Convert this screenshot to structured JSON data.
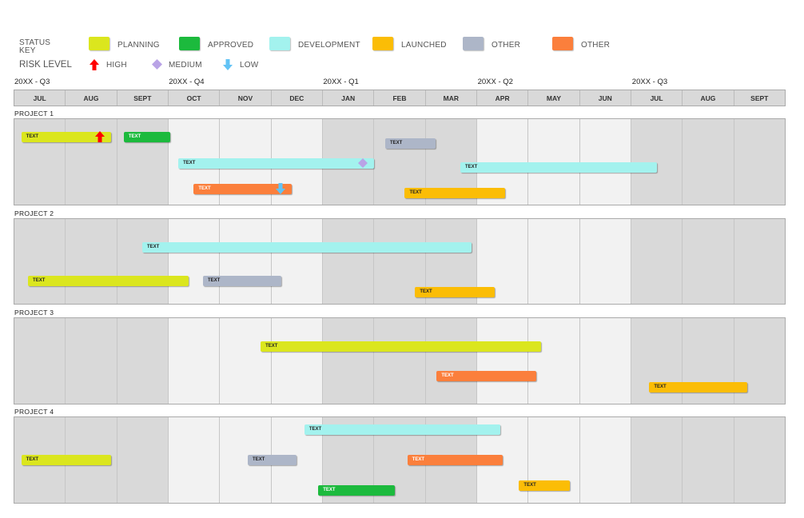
{
  "colors": {
    "planning": "#dbe61e",
    "approved": "#1cba3d",
    "development": "#a3f2ee",
    "launched": "#fbbd06",
    "other": "#adb6c8",
    "other2": "#fb7f3c",
    "high": "#ff0000",
    "medium": "#b9a3e6",
    "low": "#62c3f5",
    "shade": "#d9d9d9",
    "light": "#f2f2f2"
  },
  "legend": {
    "status_key": "STATUS KEY",
    "risk_level": "RISK LEVEL",
    "statuses": [
      {
        "label": "PLANNING",
        "color": "planning"
      },
      {
        "label": "APPROVED",
        "color": "approved"
      },
      {
        "label": "DEVELOPMENT",
        "color": "development"
      },
      {
        "label": "LAUNCHED",
        "color": "launched"
      },
      {
        "label": "OTHER",
        "color": "other"
      },
      {
        "label": "OTHER",
        "color": "other2"
      }
    ],
    "risks": [
      {
        "label": "HIGH",
        "icon": "arrow-up-icon"
      },
      {
        "label": "MEDIUM",
        "icon": "diamond-icon"
      },
      {
        "label": "LOW",
        "icon": "arrow-down-icon"
      }
    ]
  },
  "timeline": {
    "quarters": [
      "20XX - Q3",
      "20XX - Q4",
      "20XX - Q1",
      "20XX - Q2",
      "20XX - Q3"
    ],
    "months": [
      "JUL",
      "AUG",
      "SEPT",
      "OCT",
      "NOV",
      "DEC",
      "JAN",
      "FEB",
      "MAR",
      "APR",
      "MAY",
      "JUN",
      "JUL",
      "AUG",
      "SEPT"
    ],
    "month_shading": [
      "shade",
      "shade",
      "shade",
      "light",
      "light",
      "light",
      "shade",
      "shade",
      "shade",
      "light",
      "light",
      "light",
      "shade",
      "shade",
      "shade"
    ]
  },
  "projects": [
    {
      "name": "PROJECT 1",
      "bars": [
        {
          "label": "TEXT",
          "status": "planning",
          "start": 0.15,
          "end": 1.9,
          "row": 0.22,
          "risk": "high"
        },
        {
          "label": "TEXT",
          "status": "approved",
          "start": 2.14,
          "end": 3.05,
          "row": 0.22
        },
        {
          "label": "TEXT",
          "status": "development",
          "start": 3.2,
          "end": 7.0,
          "row": 0.52,
          "risk": "medium"
        },
        {
          "label": "TEXT",
          "status": "other2",
          "start": 3.5,
          "end": 5.4,
          "row": 0.82,
          "risk": "low"
        },
        {
          "label": "TEXT",
          "status": "other",
          "start": 7.22,
          "end": 8.2,
          "row": 0.29
        },
        {
          "label": "TEXT",
          "status": "development",
          "start": 8.68,
          "end": 12.5,
          "row": 0.57
        },
        {
          "label": "TEXT",
          "status": "launched",
          "start": 7.6,
          "end": 9.55,
          "row": 0.86
        }
      ]
    },
    {
      "name": "PROJECT 2",
      "bars": [
        {
          "label": "TEXT",
          "status": "development",
          "start": 2.5,
          "end": 8.9,
          "row": 0.34
        },
        {
          "label": "TEXT",
          "status": "planning",
          "start": 0.28,
          "end": 3.4,
          "row": 0.73
        },
        {
          "label": "TEXT",
          "status": "other",
          "start": 3.68,
          "end": 5.2,
          "row": 0.73
        },
        {
          "label": "TEXT",
          "status": "launched",
          "start": 7.8,
          "end": 9.35,
          "row": 0.86
        }
      ]
    },
    {
      "name": "PROJECT 3",
      "bars": [
        {
          "label": "TEXT",
          "status": "planning",
          "start": 4.8,
          "end": 10.25,
          "row": 0.34
        },
        {
          "label": "TEXT",
          "status": "other2",
          "start": 8.22,
          "end": 10.15,
          "row": 0.68
        },
        {
          "label": "TEXT",
          "status": "launched",
          "start": 12.35,
          "end": 14.25,
          "row": 0.81
        }
      ]
    },
    {
      "name": "PROJECT 4",
      "bars": [
        {
          "label": "TEXT",
          "status": "development",
          "start": 5.65,
          "end": 9.45,
          "row": 0.16
        },
        {
          "label": "TEXT",
          "status": "planning",
          "start": 0.15,
          "end": 1.9,
          "row": 0.5
        },
        {
          "label": "TEXT",
          "status": "other",
          "start": 4.55,
          "end": 5.5,
          "row": 0.5
        },
        {
          "label": "TEXT",
          "status": "other2",
          "start": 7.65,
          "end": 9.5,
          "row": 0.5
        },
        {
          "label": "TEXT",
          "status": "approved",
          "start": 5.92,
          "end": 7.4,
          "row": 0.85
        },
        {
          "label": "TEXT",
          "status": "launched",
          "start": 9.82,
          "end": 10.8,
          "row": 0.8
        }
      ]
    }
  ]
}
